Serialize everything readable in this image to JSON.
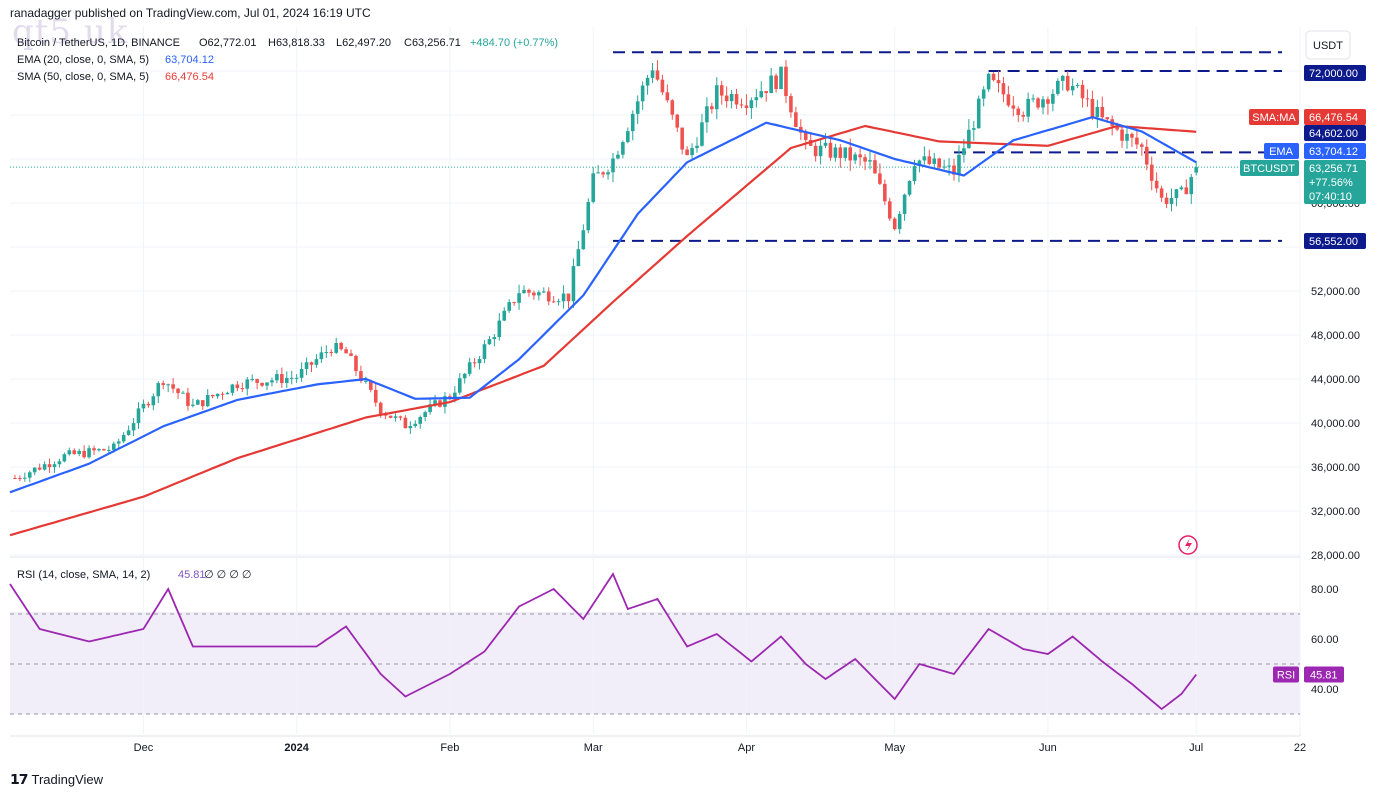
{
  "published": "ranadagger published on TradingView.com, Jul 01, 2024 16:19 UTC",
  "watermark": "qt5.uk",
  "brand": "TradingView",
  "symbol_title": "Bitcoin / TetherUS, 1D, BINANCE",
  "ohlc": {
    "o": "O62,772.01",
    "h": "H63,818.33",
    "l": "L62,497.20",
    "c": "C63,256.71",
    "chg": "+484.70 (+0.77%)"
  },
  "indicators": [
    {
      "label": "EMA (20, close, 0, SMA, 5)",
      "value": "63,704.12",
      "color": "#2962ff"
    },
    {
      "label": "SMA (50, close, 0, SMA, 5)",
      "value": "66,476.54",
      "color": "#e53935"
    }
  ],
  "currency": "USDT",
  "price_axis": [
    "28,000.00",
    "32,000.00",
    "36,000.00",
    "40,000.00",
    "44,000.00",
    "48,000.00",
    "52,000.00",
    "60,000.00"
  ],
  "rsi_axis": [
    "80.00",
    "60.00",
    "40.00"
  ],
  "time_axis": [
    "Dec",
    "2024",
    "Feb",
    "Mar",
    "Apr",
    "May",
    "Jun",
    "Jul",
    "22"
  ],
  "levels": {
    "resistance_high": "72,000.00",
    "mid": "64,602.00",
    "support": "56,552.00"
  },
  "tags": {
    "sma": {
      "label": "SMA:MA",
      "value": "66,476.54",
      "color": "#e53935"
    },
    "ema": {
      "label": "EMA",
      "value": "63,704.12",
      "color": "#2962ff"
    },
    "price": {
      "label": "BTCUSDT",
      "value": "63,256.71",
      "change": "+77.56%",
      "countdown": "07:40:10",
      "color": "#26a69a"
    },
    "rsi": {
      "label": "RSI",
      "value": "45.81",
      "color": "#9c27b0"
    }
  },
  "rsi_header": {
    "label": "RSI (14, close, SMA, 14, 2)",
    "value": "45.81",
    "extras": "∅ ∅ ∅ ∅"
  },
  "chart_data": {
    "type": "candlestick",
    "title": "Bitcoin / TetherUS, 1D, BINANCE",
    "x_range": [
      "2023-11-04",
      "2024-07-22"
    ],
    "y_range": [
      28000,
      76000
    ],
    "last": {
      "open": 62772.01,
      "high": 63818.33,
      "low": 62497.2,
      "close": 63256.71
    },
    "horizontal_levels": [
      {
        "price": 73700,
        "style": "dashed",
        "from": "2024-03-05"
      },
      {
        "price": 72000,
        "style": "dashed",
        "from": "2024-05-20"
      },
      {
        "price": 64602,
        "style": "dashed",
        "from": "2024-05-13"
      },
      {
        "price": 56552,
        "style": "dashed",
        "from": "2024-03-05"
      }
    ],
    "series": [
      {
        "name": "BTCUSDT close",
        "points": [
          [
            "2023-11-05",
            35000
          ],
          [
            "2023-11-15",
            37000
          ],
          [
            "2023-11-25",
            37700
          ],
          [
            "2023-12-05",
            44000
          ],
          [
            "2023-12-11",
            41500
          ],
          [
            "2023-12-20",
            43600
          ],
          [
            "2024-01-01",
            44200
          ],
          [
            "2024-01-08",
            46900
          ],
          [
            "2024-01-11",
            46300
          ],
          [
            "2024-01-18",
            41200
          ],
          [
            "2024-01-23",
            39800
          ],
          [
            "2024-02-01",
            42500
          ],
          [
            "2024-02-09",
            47500
          ],
          [
            "2024-02-15",
            52000
          ],
          [
            "2024-02-25",
            51500
          ],
          [
            "2024-03-01",
            62000
          ],
          [
            "2024-03-05",
            64000
          ],
          [
            "2024-03-13",
            72500
          ],
          [
            "2024-03-20",
            64000
          ],
          [
            "2024-03-26",
            70000
          ],
          [
            "2024-04-01",
            69500
          ],
          [
            "2024-04-08",
            71500
          ],
          [
            "2024-04-13",
            65000
          ],
          [
            "2024-04-20",
            64500
          ],
          [
            "2024-04-26",
            63500
          ],
          [
            "2024-05-01",
            58000
          ],
          [
            "2024-05-05",
            64000
          ],
          [
            "2024-05-13",
            62800
          ],
          [
            "2024-05-20",
            71000
          ],
          [
            "2024-05-27",
            68500
          ],
          [
            "2024-06-05",
            71000
          ],
          [
            "2024-06-12",
            67500
          ],
          [
            "2024-06-20",
            65000
          ],
          [
            "2024-06-24",
            60300
          ],
          [
            "2024-06-28",
            60700
          ],
          [
            "2024-07-01",
            63256.71
          ]
        ]
      },
      {
        "name": "EMA (20)",
        "points": [
          [
            "2023-11-04",
            33700
          ],
          [
            "2023-11-20",
            36300
          ],
          [
            "2023-12-05",
            39700
          ],
          [
            "2023-12-20",
            42100
          ],
          [
            "2024-01-05",
            43500
          ],
          [
            "2024-01-15",
            44000
          ],
          [
            "2024-01-25",
            42200
          ],
          [
            "2024-02-05",
            42300
          ],
          [
            "2024-02-15",
            45800
          ],
          [
            "2024-02-28",
            51600
          ],
          [
            "2024-03-10",
            59000
          ],
          [
            "2024-03-20",
            63700
          ],
          [
            "2024-04-05",
            67300
          ],
          [
            "2024-04-20",
            65700
          ],
          [
            "2024-05-01",
            64000
          ],
          [
            "2024-05-15",
            62500
          ],
          [
            "2024-05-25",
            65700
          ],
          [
            "2024-06-10",
            67800
          ],
          [
            "2024-06-20",
            66500
          ],
          [
            "2024-07-01",
            63704.12
          ]
        ]
      },
      {
        "name": "SMA (50)",
        "points": [
          [
            "2023-11-04",
            29800
          ],
          [
            "2023-12-01",
            33300
          ],
          [
            "2023-12-20",
            36800
          ],
          [
            "2024-01-15",
            40500
          ],
          [
            "2024-02-01",
            41900
          ],
          [
            "2024-02-20",
            45200
          ],
          [
            "2024-03-05",
            51000
          ],
          [
            "2024-03-20",
            57000
          ],
          [
            "2024-04-10",
            65000
          ],
          [
            "2024-04-25",
            67000
          ],
          [
            "2024-05-10",
            65600
          ],
          [
            "2024-06-01",
            65200
          ],
          [
            "2024-06-15",
            67000
          ],
          [
            "2024-07-01",
            66476.54
          ]
        ]
      },
      {
        "name": "RSI (14)",
        "points": [
          [
            "2023-11-04",
            82
          ],
          [
            "2023-11-10",
            64
          ],
          [
            "2023-11-20",
            59
          ],
          [
            "2023-12-01",
            64
          ],
          [
            "2023-12-06",
            80
          ],
          [
            "2023-12-11",
            57
          ],
          [
            "2023-12-25",
            57
          ],
          [
            "2024-01-05",
            57
          ],
          [
            "2024-01-11",
            65
          ],
          [
            "2024-01-18",
            46
          ],
          [
            "2024-01-23",
            37
          ],
          [
            "2024-02-01",
            46
          ],
          [
            "2024-02-08",
            55
          ],
          [
            "2024-02-15",
            73
          ],
          [
            "2024-02-22",
            80
          ],
          [
            "2024-02-28",
            68
          ],
          [
            "2024-03-05",
            86
          ],
          [
            "2024-03-08",
            72
          ],
          [
            "2024-03-14",
            76
          ],
          [
            "2024-03-20",
            57
          ],
          [
            "2024-03-26",
            62
          ],
          [
            "2024-04-02",
            51
          ],
          [
            "2024-04-08",
            61
          ],
          [
            "2024-04-13",
            50
          ],
          [
            "2024-04-17",
            44
          ],
          [
            "2024-04-23",
            52
          ],
          [
            "2024-05-01",
            36
          ],
          [
            "2024-05-06",
            50
          ],
          [
            "2024-05-13",
            46
          ],
          [
            "2024-05-20",
            64
          ],
          [
            "2024-05-27",
            56
          ],
          [
            "2024-06-01",
            54
          ],
          [
            "2024-06-06",
            61
          ],
          [
            "2024-06-12",
            51
          ],
          [
            "2024-06-18",
            42
          ],
          [
            "2024-06-24",
            32
          ],
          [
            "2024-06-28",
            38
          ],
          [
            "2024-07-01",
            45.81
          ]
        ]
      }
    ],
    "rsi_levels": [
      70,
      50,
      30
    ]
  }
}
